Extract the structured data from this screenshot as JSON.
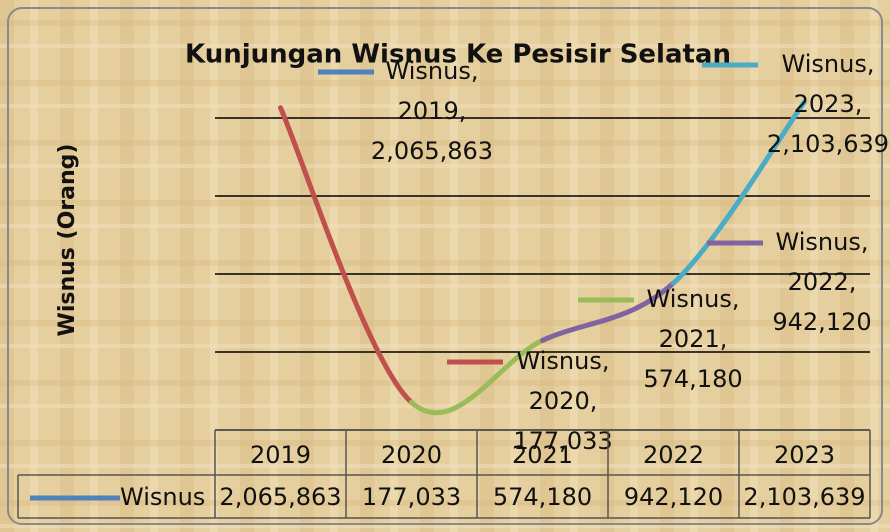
{
  "chart_data": {
    "type": "line",
    "title": "Kunjungan Wisnus Ke Pesisir Selatan",
    "y_label": "Wisnus (Orang)",
    "categories": [
      "2019",
      "2020",
      "2021",
      "2022",
      "2023"
    ],
    "series": [
      {
        "name": "Wisnus",
        "color": "#4f81bd",
        "point_colors": [
          "#4f81bd",
          "#c0504d",
          "#9bbb59",
          "#8064a2",
          "#4bacc6"
        ],
        "values": [
          2065863,
          177033,
          574180,
          942120,
          2103639
        ],
        "value_labels": [
          "2,065,863",
          "177,033",
          "574,180",
          "942,120",
          "2,103,639"
        ],
        "point_labels": [
          [
            "Wisnus,",
            "2019,"
          ],
          [
            "Wisnus,",
            "2020,"
          ],
          [
            "Wisnus,",
            "2021,"
          ],
          [
            "Wisnus,",
            "2022,"
          ],
          [
            "Wisnus,",
            "2023,"
          ]
        ]
      }
    ],
    "ylim": [
      0,
      2500000
    ],
    "yticks": [
      0,
      500000,
      1000000,
      1500000,
      2000000
    ],
    "grid": true,
    "smooth": true
  }
}
